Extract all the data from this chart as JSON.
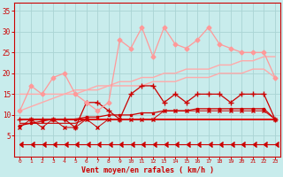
{
  "x": [
    0,
    1,
    2,
    3,
    4,
    5,
    6,
    7,
    8,
    9,
    10,
    11,
    12,
    13,
    14,
    15,
    16,
    17,
    18,
    19,
    20,
    21,
    22,
    23
  ],
  "bg_color": "#c8ecec",
  "grid_color": "#aad4d4",
  "text_color": "#cc0000",
  "xlabel": "Vent moyen/en rafales ( km/h )",
  "ylim": [
    0,
    37
  ],
  "xlim": [
    -0.5,
    23.5
  ],
  "yticks": [
    5,
    10,
    15,
    20,
    25,
    30,
    35
  ],
  "xticks": [
    0,
    1,
    2,
    3,
    4,
    5,
    6,
    7,
    8,
    9,
    10,
    11,
    12,
    13,
    14,
    15,
    16,
    17,
    18,
    19,
    20,
    21,
    22,
    23
  ],
  "series": [
    {
      "name": "jagged_light_pink_diamonds",
      "y": [
        11,
        17,
        15,
        19,
        20,
        15,
        13,
        11,
        13,
        28,
        26,
        31,
        24,
        31,
        27,
        26,
        28,
        31,
        27,
        26,
        25,
        25,
        25,
        19
      ],
      "color": "#ff9999",
      "lw": 0.9,
      "marker": "D",
      "ms": 2.5,
      "zorder": 6
    },
    {
      "name": "upper_diag_light_pink",
      "y": [
        11,
        12,
        13,
        14,
        15,
        16,
        16,
        17,
        17,
        18,
        18,
        19,
        19,
        20,
        20,
        21,
        21,
        21,
        22,
        22,
        23,
        23,
        24,
        24
      ],
      "color": "#ffaaaa",
      "lw": 1.0,
      "marker": null,
      "ms": 0,
      "zorder": 3
    },
    {
      "name": "lower_diag_light_pink",
      "y": [
        15,
        15,
        15,
        15,
        15,
        15,
        16,
        16,
        17,
        17,
        17,
        17,
        18,
        18,
        18,
        19,
        19,
        19,
        20,
        20,
        20,
        21,
        21,
        19
      ],
      "color": "#ffaaaa",
      "lw": 1.0,
      "marker": null,
      "ms": 0,
      "zorder": 3
    },
    {
      "name": "dark_red_plus_jagged",
      "y": [
        9,
        9,
        9,
        9,
        9,
        7,
        13,
        13,
        11,
        9,
        15,
        17,
        17,
        13,
        15,
        13,
        15,
        15,
        15,
        13,
        15,
        15,
        15,
        9
      ],
      "color": "#cc0000",
      "lw": 0.9,
      "marker": "+",
      "ms": 4,
      "zorder": 5
    },
    {
      "name": "flat_dark_red_1",
      "y": [
        9,
        9,
        9,
        9,
        9,
        9,
        9,
        9,
        9,
        9,
        9,
        9,
        9,
        9,
        9,
        9,
        9,
        9,
        9,
        9,
        9,
        9,
        9,
        9
      ],
      "color": "#dd0000",
      "lw": 1.4,
      "marker": null,
      "ms": 0,
      "zorder": 4
    },
    {
      "name": "flat_dark_red_2",
      "y": [
        8,
        8,
        8,
        8,
        8,
        8,
        9,
        9,
        9,
        9,
        9,
        9,
        9,
        9,
        9,
        9,
        9,
        9,
        9,
        9,
        9,
        9,
        9,
        9
      ],
      "color": "#cc0000",
      "lw": 0.8,
      "marker": null,
      "ms": 0,
      "zorder": 3
    },
    {
      "name": "slightly_rising_red",
      "y": [
        7.5,
        8,
        8.5,
        9,
        9,
        9,
        9.5,
        9.5,
        10,
        10,
        10,
        10.5,
        10.5,
        11,
        11,
        11,
        11.5,
        11.5,
        11.5,
        11.5,
        11.5,
        11.5,
        11.5,
        9
      ],
      "color": "#cc0000",
      "lw": 0.9,
      "marker": "s",
      "ms": 2,
      "zorder": 5
    },
    {
      "name": "lower_jagged_red",
      "y": [
        7,
        9,
        7,
        9,
        7,
        7,
        9,
        7,
        9,
        9,
        9,
        9,
        9,
        11,
        11,
        11,
        11,
        11,
        11,
        11,
        11,
        11,
        11,
        9
      ],
      "color": "#cc0000",
      "lw": 0.7,
      "marker": "x",
      "ms": 2.5,
      "zorder": 4
    },
    {
      "name": "arrow_bottom",
      "y": [
        3,
        3,
        3,
        3,
        3,
        3,
        3,
        3,
        3,
        3,
        3,
        3,
        3,
        3,
        3,
        3,
        3,
        3,
        3,
        3,
        3,
        3,
        3,
        3
      ],
      "color": "#cc0000",
      "lw": 0.8,
      "marker": "CARETLEFT",
      "ms": 4,
      "zorder": 7
    }
  ]
}
